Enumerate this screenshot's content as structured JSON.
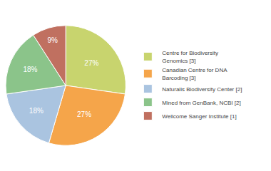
{
  "chart_data": {
    "type": "pie",
    "categories": [
      "Centre for Biodiversity\nGenomics [3]",
      "Canadian Centre for DNA\nBarcoding [3]",
      "Naturalis Biodiversity Center [2]",
      "Mined from GenBank, NCBI [2]",
      "Wellcome Sanger Institute [1]"
    ],
    "values": [
      27,
      27,
      18,
      18,
      9
    ],
    "value_labels": [
      "27%",
      "27%",
      "18%",
      "18%",
      "9%"
    ],
    "colors": [
      "#c8d46e",
      "#f5a54a",
      "#aac4e0",
      "#8bc48a",
      "#c07060"
    ],
    "data_labels": true,
    "legend": "right"
  }
}
